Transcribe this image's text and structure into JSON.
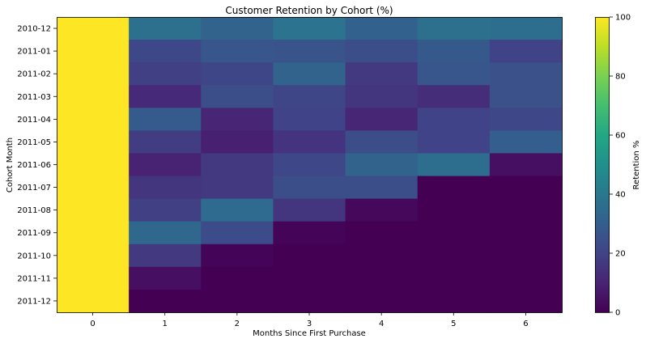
{
  "chart_data": {
    "type": "heatmap",
    "title": "Customer Retention by Cohort (%)",
    "xlabel": "Months Since First Purchase",
    "ylabel": "Cohort Month",
    "x": [
      "0",
      "1",
      "2",
      "3",
      "4",
      "5",
      "6"
    ],
    "y": [
      "2010-12",
      "2011-01",
      "2011-02",
      "2011-03",
      "2011-04",
      "2011-05",
      "2011-06",
      "2011-07",
      "2011-08",
      "2011-09",
      "2011-10",
      "2011-11",
      "2011-12"
    ],
    "values": [
      [
        100,
        37,
        32,
        38,
        31,
        37,
        36
      ],
      [
        100,
        22,
        27,
        26,
        24,
        28,
        20
      ],
      [
        100,
        19,
        21,
        32,
        17,
        27,
        25
      ],
      [
        100,
        12,
        24,
        21,
        16,
        13,
        25
      ],
      [
        100,
        29,
        11,
        20,
        11,
        20,
        22
      ],
      [
        100,
        18,
        9,
        15,
        24,
        20,
        30
      ],
      [
        100,
        10,
        17,
        22,
        32,
        36,
        4
      ],
      [
        100,
        16,
        17,
        24,
        24,
        0,
        0
      ],
      [
        100,
        19,
        35,
        16,
        2,
        0,
        0
      ],
      [
        100,
        34,
        23,
        1,
        0,
        0,
        0
      ],
      [
        100,
        17,
        1,
        0,
        0,
        0,
        0
      ],
      [
        100,
        4,
        0,
        0,
        0,
        0,
        0
      ],
      [
        100,
        0,
        0,
        0,
        0,
        0,
        0
      ]
    ],
    "colorbar": {
      "label": "Retention %",
      "range": [
        0,
        100
      ],
      "ticks": [
        0,
        20,
        40,
        60,
        80,
        100
      ],
      "colormap": "viridis"
    },
    "grid": false
  }
}
